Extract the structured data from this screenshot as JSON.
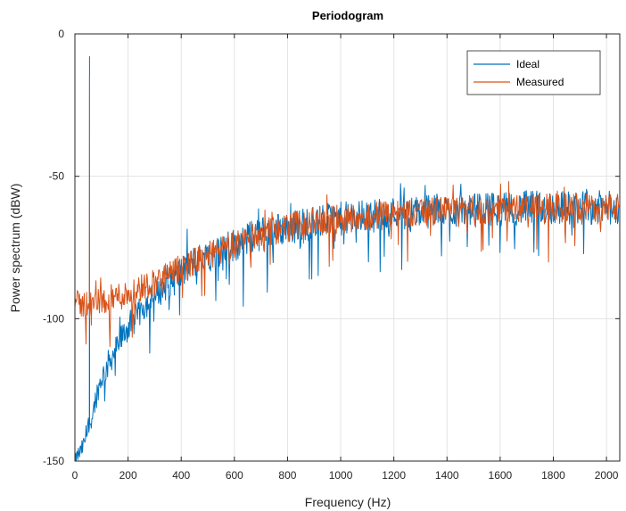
{
  "chart_data": {
    "type": "line",
    "title": "Periodogram",
    "xlabel": "Frequency (Hz)",
    "ylabel": "Power spectrum (dBW)",
    "xlim": [
      0,
      2050
    ],
    "ylim": [
      -150,
      0
    ],
    "xticks": [
      0,
      200,
      400,
      600,
      800,
      1000,
      1200,
      1400,
      1600,
      1800,
      2000
    ],
    "yticks": [
      -150,
      -100,
      -50,
      0
    ],
    "grid": true,
    "legend_position": "top-right",
    "series": [
      {
        "name": "Ideal",
        "color": "#0072BD",
        "x": [
          0,
          10,
          20,
          30,
          40,
          50,
          55,
          60,
          70,
          80,
          90,
          100,
          120,
          140,
          160,
          180,
          200,
          225,
          250,
          275,
          300,
          325,
          350,
          375,
          400,
          425,
          450,
          475,
          500,
          525,
          550,
          575,
          600,
          650,
          700,
          750,
          800,
          850,
          900,
          950,
          1000,
          1050,
          1100,
          1150,
          1200,
          1250,
          1300,
          1350,
          1400,
          1450,
          1500,
          1550,
          1600,
          1650,
          1700,
          1750,
          1800,
          1850,
          1900,
          1950,
          2000,
          2048
        ],
        "values": [
          -150,
          -148,
          -147,
          -145,
          -142,
          -138,
          -8,
          -136,
          -132,
          -127,
          -124,
          -121,
          -117,
          -113,
          -110,
          -106,
          -103,
          -100,
          -97,
          -94,
          -92,
          -90,
          -88,
          -86,
          -84,
          -82,
          -80,
          -79,
          -78,
          -77,
          -76,
          -75,
          -74,
          -72,
          -70,
          -69,
          -68,
          -67,
          -66,
          -65.5,
          -65,
          -64.5,
          -64,
          -63.5,
          -63,
          -63,
          -62.5,
          -62.5,
          -62,
          -62,
          -62,
          -61.5,
          -61.5,
          -61.5,
          -61,
          -61,
          -61,
          -61,
          -61,
          -61,
          -61,
          -61
        ],
        "spread": [
          2,
          3,
          3,
          3,
          3,
          3,
          0,
          3,
          4,
          4,
          4,
          4,
          5,
          5,
          5,
          5,
          5,
          5,
          5,
          5,
          5,
          5,
          5,
          6,
          6,
          6,
          6,
          6,
          6,
          6,
          6,
          6,
          6,
          6,
          6,
          6,
          6,
          6,
          6,
          6,
          6,
          6,
          6,
          6,
          6,
          6,
          6,
          6,
          6,
          6,
          6,
          6,
          6,
          6,
          6,
          6,
          6,
          6,
          6,
          6,
          6,
          6
        ]
      },
      {
        "name": "Measured",
        "color": "#D95319",
        "x": [
          0,
          10,
          20,
          30,
          40,
          50,
          55,
          60,
          70,
          80,
          90,
          100,
          120,
          140,
          160,
          180,
          200,
          225,
          250,
          275,
          300,
          325,
          350,
          375,
          400,
          425,
          450,
          475,
          500,
          525,
          550,
          575,
          600,
          650,
          700,
          750,
          800,
          850,
          900,
          950,
          1000,
          1050,
          1100,
          1150,
          1200,
          1250,
          1300,
          1350,
          1400,
          1450,
          1500,
          1550,
          1600,
          1650,
          1700,
          1750,
          1800,
          1850,
          1900,
          1950,
          2000,
          2048
        ],
        "values": [
          -95,
          -95,
          -95,
          -95,
          -95,
          -95,
          -15,
          -95,
          -95,
          -94,
          -94,
          -94,
          -93,
          -93,
          -92,
          -92,
          -91,
          -90,
          -89,
          -88,
          -87,
          -86,
          -85,
          -84,
          -82,
          -81,
          -80,
          -79,
          -78,
          -77,
          -76,
          -75,
          -74,
          -72,
          -70,
          -69,
          -68,
          -67,
          -66,
          -65.5,
          -65,
          -64.5,
          -64,
          -63.5,
          -63,
          -63,
          -62.5,
          -62.5,
          -62,
          -62,
          -62,
          -61.5,
          -61.5,
          -61.5,
          -61,
          -61,
          -61,
          -61,
          -61,
          -61,
          -61,
          -61
        ],
        "spread": [
          5,
          5,
          5,
          5,
          5,
          5,
          0,
          5,
          5,
          5,
          5,
          5,
          5,
          5,
          5,
          5,
          5,
          5,
          5,
          5,
          5,
          5,
          5,
          5,
          5,
          5,
          5,
          5,
          5,
          5,
          5,
          5,
          5,
          5,
          5,
          5,
          5,
          5,
          5,
          5,
          5,
          5,
          5,
          5,
          5,
          5,
          5,
          5,
          5,
          5,
          5,
          5,
          5,
          5,
          5,
          5,
          5,
          5,
          5,
          5,
          5,
          5
        ]
      }
    ]
  }
}
